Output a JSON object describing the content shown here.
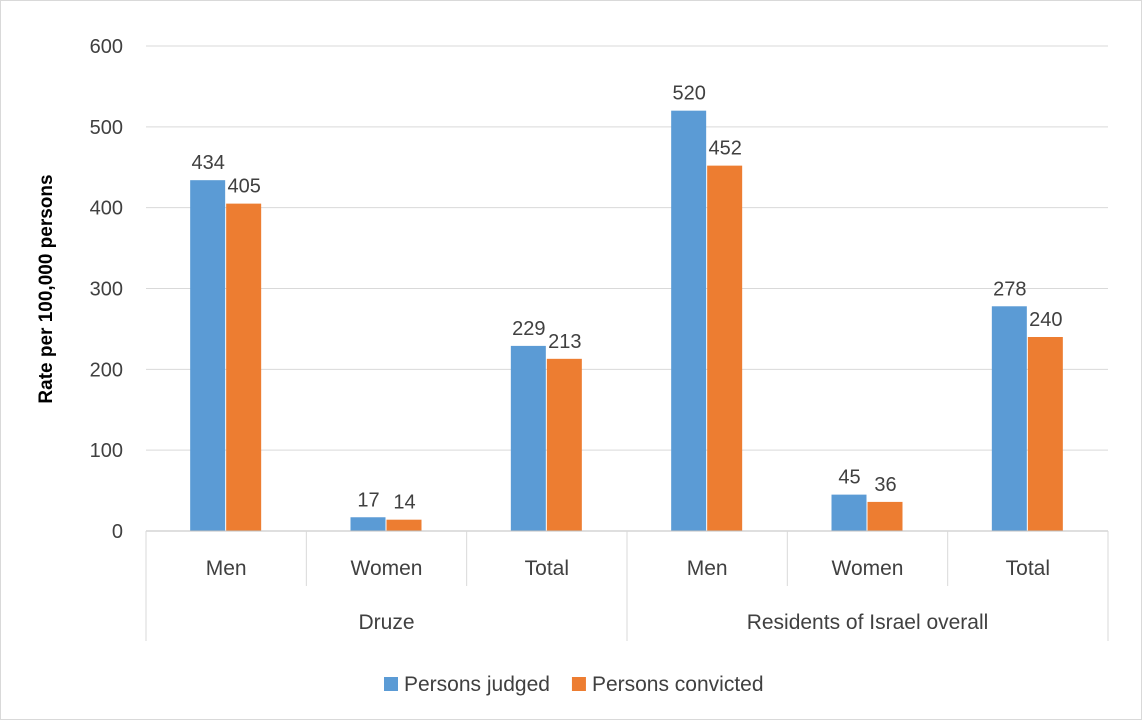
{
  "chart_data": {
    "type": "bar",
    "title": "",
    "xlabel": "",
    "ylabel": "Rate per 100,000 persons",
    "ylim": [
      0,
      600
    ],
    "yticks": [
      0,
      100,
      200,
      300,
      400,
      500,
      600
    ],
    "grid": true,
    "legend_position": "bottom",
    "groups": [
      {
        "label": "Druze",
        "categories": [
          "Men",
          "Women",
          "Total"
        ]
      },
      {
        "label": "Residents of Israel overall",
        "categories": [
          "Men",
          "Women",
          "Total"
        ]
      }
    ],
    "categories": [
      "Men",
      "Women",
      "Total",
      "Men",
      "Women",
      "Total"
    ],
    "series": [
      {
        "name": "Persons judged",
        "color": "#5b9bd5",
        "values": [
          434,
          17,
          229,
          520,
          45,
          278
        ]
      },
      {
        "name": "Persons convicted",
        "color": "#ed7d31",
        "values": [
          405,
          14,
          213,
          452,
          36,
          240
        ]
      }
    ]
  }
}
